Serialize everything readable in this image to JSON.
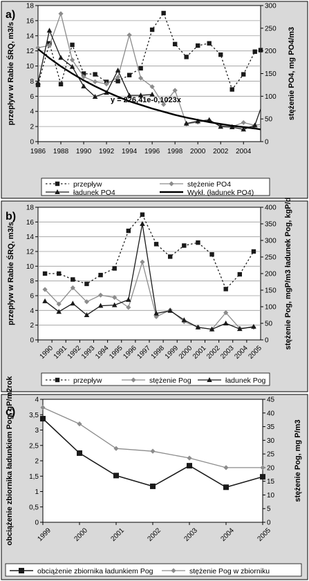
{
  "chart_data": [
    {
      "panel": "a)",
      "type": "line",
      "xlim": [
        1986,
        2005.5
      ],
      "xticks": [
        "1986",
        "1988",
        "1990",
        "1992",
        "1994",
        "1996",
        "1998",
        "2000",
        "2002",
        "2004"
      ],
      "ylabel": "przepływ w Rabie ŚRQ, m3/s",
      "y2label": "stężenie PO4, mg PO4/m3",
      "ylim": [
        0,
        18
      ],
      "yticks": [
        "0",
        "2",
        "4",
        "6",
        "8",
        "10",
        "12",
        "14",
        "16",
        "18"
      ],
      "y2lim": [
        0,
        300
      ],
      "y2ticks": [
        "0",
        "50",
        "100",
        "150",
        "200",
        "250",
        "300"
      ],
      "grid": true,
      "legend_position": "bottom",
      "annotation": "y = 226,41e-0,1023x",
      "series": [
        {
          "name": "przepływ",
          "axis": "left",
          "style": "dotted-square",
          "x": [
            1986,
            1987,
            1988,
            1989,
            1990,
            1991,
            1992,
            1993,
            1994,
            1995,
            1996,
            1997,
            1998,
            1999,
            2000,
            2001,
            2002,
            2003,
            2004,
            2005,
            2005.5
          ],
          "values": [
            7.5,
            13,
            7.6,
            12.8,
            9,
            8.9,
            7.9,
            8,
            8.8,
            9.7,
            14.8,
            17,
            12.9,
            11.2,
            12.7,
            13,
            11.5,
            6.9,
            8.9,
            11.9,
            12.1
          ]
        },
        {
          "name": "stężenie PO4",
          "axis": "right",
          "style": "solid-diamond",
          "x": [
            1986,
            1987,
            1988,
            1989,
            1990,
            1991,
            1992,
            1993,
            1994,
            1995,
            1996,
            1997,
            1998,
            1999,
            2000,
            2001,
            2002,
            2003,
            2004,
            2005,
            2005.5
          ],
          "values": [
            207,
            212,
            282,
            180,
            143,
            132,
            127,
            142,
            235,
            140,
            121,
            82,
            113,
            39,
            43,
            47,
            35,
            33,
            42,
            36,
            38
          ]
        },
        {
          "name": "ładunek PO4",
          "axis": "right",
          "style": "solid-triangle",
          "x": [
            1986,
            1987,
            1988,
            1989,
            1990,
            1991,
            1992,
            1993,
            1994,
            1995,
            1996,
            1997,
            1998,
            1999,
            2000,
            2001,
            2002,
            2003,
            2004,
            2005,
            2005.5
          ],
          "values": [
            130,
            245,
            185,
            165,
            122,
            99,
            108,
            157,
            102,
            102,
            104,
            null,
            null,
            40,
            45,
            48,
            33,
            32,
            27,
            36,
            72
          ]
        },
        {
          "name": "Wykł. (ładunek PO4)",
          "axis": "right",
          "style": "trend",
          "x": [
            1986,
            1987,
            1988,
            1989,
            1990,
            1991,
            1992,
            1993,
            1994,
            1995,
            1996,
            1997,
            1998,
            1999,
            2000,
            2001,
            2002,
            2003,
            2004,
            2005,
            2005.5
          ],
          "values": [
            204,
            184,
            166,
            150,
            135,
            122,
            110,
            99,
            89,
            81,
            73,
            66,
            59,
            53,
            48,
            43,
            39,
            35,
            32,
            29,
            27
          ]
        }
      ]
    },
    {
      "panel": "b)",
      "type": "line",
      "categories": [
        "1990",
        "1991",
        "1992",
        "1993",
        "1994",
        "1995",
        "1996",
        "1997",
        "1998",
        "1999",
        "2000",
        "2001",
        "2002",
        "2003",
        "2004",
        "2005"
      ],
      "ylabel": "przepływ w Rabie ŚRQ, m3/s",
      "y2label": "stężenie Pog, mgP/m3 ładunek Pog, kgP/d",
      "ylim": [
        0,
        18
      ],
      "yticks": [
        "0",
        "2",
        "4",
        "6",
        "8",
        "10",
        "12",
        "14",
        "16",
        "18"
      ],
      "y2lim": [
        0,
        400
      ],
      "y2ticks": [
        "0",
        "50",
        "100",
        "150",
        "200",
        "250",
        "300",
        "350",
        "400"
      ],
      "grid": true,
      "legend_position": "bottom",
      "series": [
        {
          "name": "przepływ",
          "axis": "left",
          "style": "dotted-square",
          "x": [
            0.5,
            1.5,
            2.5,
            3.5,
            4.5,
            5.5,
            6.5,
            7.5,
            8.5,
            9.5,
            10.5,
            11.5,
            12.5,
            13.5,
            14.5,
            15.5
          ],
          "values": [
            9,
            9,
            8.2,
            7.6,
            8.8,
            9.7,
            14.8,
            17,
            13,
            11.3,
            12.8,
            13.2,
            11.6,
            6.9,
            8.9,
            12
          ]
        },
        {
          "name": "stężenie Pog",
          "axis": "right",
          "style": "solid-diamond",
          "x": [
            0.5,
            1.5,
            2.5,
            3.5,
            4.5,
            5.5,
            6.5,
            7.5,
            8.5,
            9.5,
            10.5,
            11.5,
            12.5,
            13.5,
            14.5,
            15.5
          ],
          "values": [
            152,
            108,
            157,
            115,
            135,
            128,
            98,
            235,
            70,
            90,
            55,
            38,
            32,
            82,
            35,
            38
          ]
        },
        {
          "name": "ładunek Pog",
          "axis": "right",
          "style": "solid-triangle",
          "x": [
            0.5,
            1.5,
            2.5,
            3.5,
            4.5,
            5.5,
            6.5,
            7.5,
            8.5,
            9.5,
            10.5,
            11.5,
            12.5,
            13.5,
            14.5,
            15.5
          ],
          "values": [
            117,
            85,
            110,
            75,
            103,
            105,
            121,
            350,
            80,
            88,
            60,
            38,
            32,
            50,
            33,
            40
          ]
        }
      ]
    },
    {
      "panel": "c)",
      "type": "line",
      "categories": [
        "1999",
        "2000",
        "2001",
        "2002",
        "2003",
        "2004",
        "2005"
      ],
      "ylabel": "obciążenie zbiornika ładunkiem Pog, gP/m2rok",
      "y2label": "stężenie Pog, mg P/m3",
      "ylim": [
        0,
        4
      ],
      "yticks": [
        "0",
        "0,5",
        "1",
        "1,5",
        "2",
        "2,5",
        "3",
        "3,5",
        "4"
      ],
      "y2lim": [
        0,
        45
      ],
      "y2ticks": [
        "0",
        "5",
        "10",
        "15",
        "20",
        "25",
        "30",
        "35",
        "40",
        "45"
      ],
      "grid": false,
      "legend_position": "bottom",
      "series": [
        {
          "name": "obciążenie zbiornika ładunkiem Pog",
          "axis": "left",
          "style": "solid-square",
          "x": [
            0,
            1,
            2,
            3,
            4,
            5,
            6
          ],
          "values": [
            3.37,
            2.25,
            1.52,
            1.17,
            1.84,
            1.14,
            1.48
          ]
        },
        {
          "name": "stężenie Pog w zbiorniku",
          "axis": "right",
          "style": "solid-diamond-gray",
          "x": [
            0,
            1,
            2,
            3,
            4,
            5,
            6
          ],
          "values": [
            42,
            36,
            27,
            26,
            23.5,
            20,
            20
          ]
        }
      ]
    }
  ],
  "colors": {
    "panel_bg": "#d9d9d9",
    "plot_bg": "#ffffff",
    "series_dark": "#1a1a1a",
    "series_gray": "#8c8c8c"
  }
}
